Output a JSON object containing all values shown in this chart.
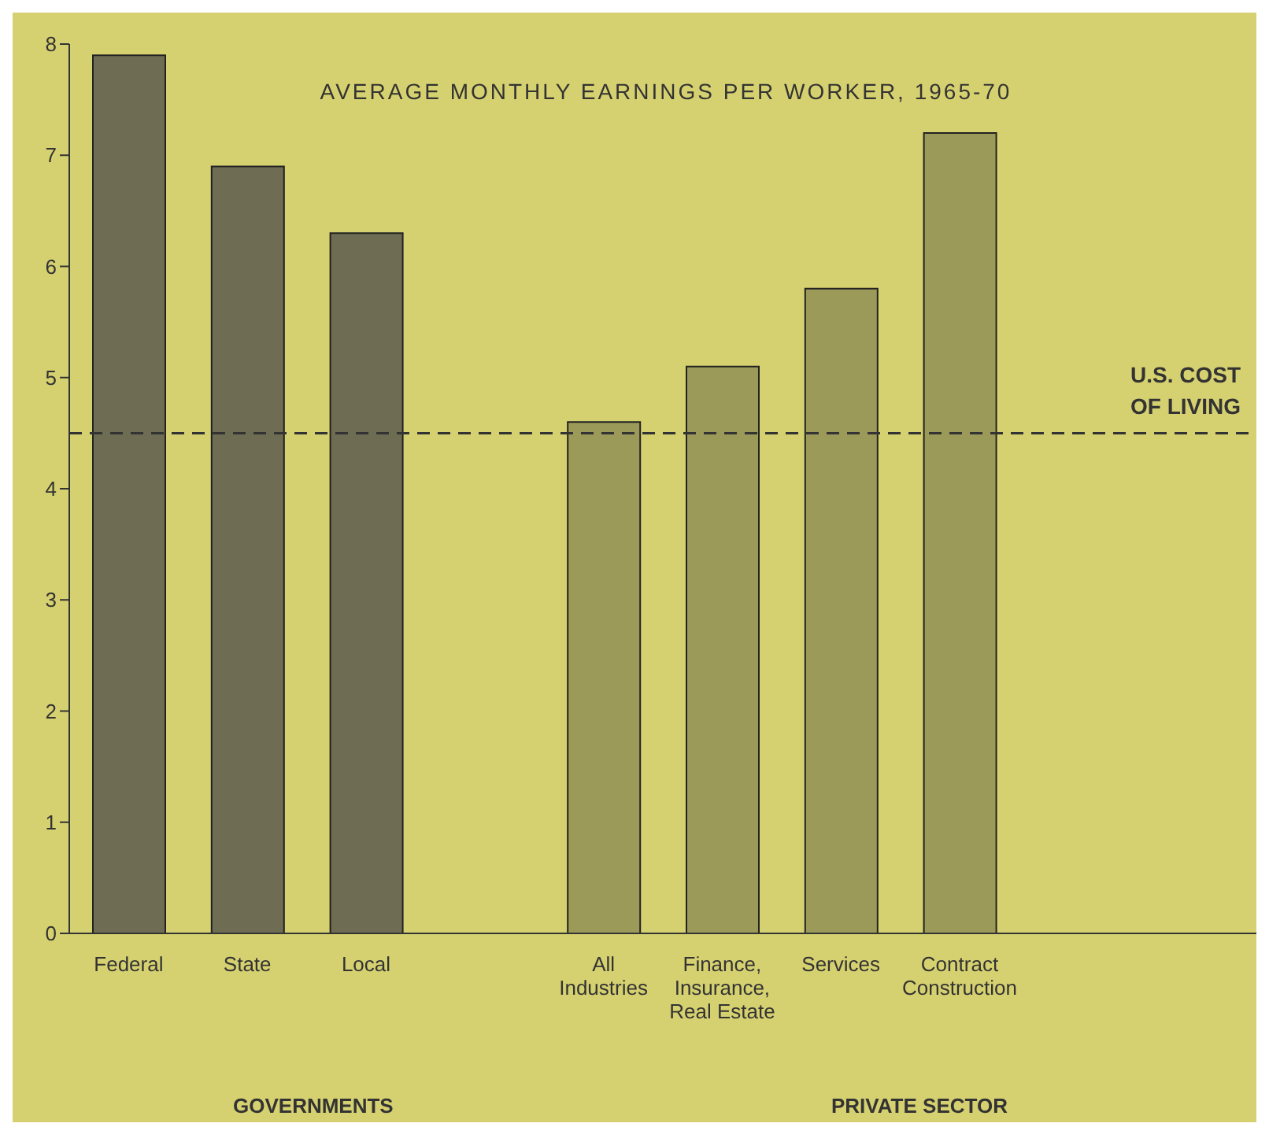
{
  "chart_data": {
    "type": "bar",
    "title": "AVERAGE MONTHLY EARNINGS PER WORKER, 1965-70",
    "categories": [
      "Federal",
      "State",
      "Local",
      null,
      "All Industries",
      "Finance, Insurance, Real Estate",
      "Services",
      "Contract Construction",
      null,
      null
    ],
    "values": [
      7.9,
      6.9,
      6.3,
      null,
      4.6,
      5.1,
      5.8,
      7.2,
      null,
      null
    ],
    "colors": [
      "#6e6c52",
      "#6e6c52",
      "#6e6c52",
      null,
      "#9c9a58",
      "#9c9a58",
      "#9c9a58",
      "#9c9a58",
      null,
      null
    ],
    "ylim": [
      0,
      8
    ],
    "yticks": [
      0,
      1,
      2,
      3,
      4,
      5,
      6,
      7,
      8
    ],
    "ref_lines": [
      {
        "axis": "y",
        "value": 4.5,
        "label": "U.S. COST OF LIVING",
        "color": "#333333",
        "line_style": "dashed"
      }
    ],
    "annotations": [
      "GOVERNMENTS",
      "PRIVATE SECTOR"
    ]
  }
}
